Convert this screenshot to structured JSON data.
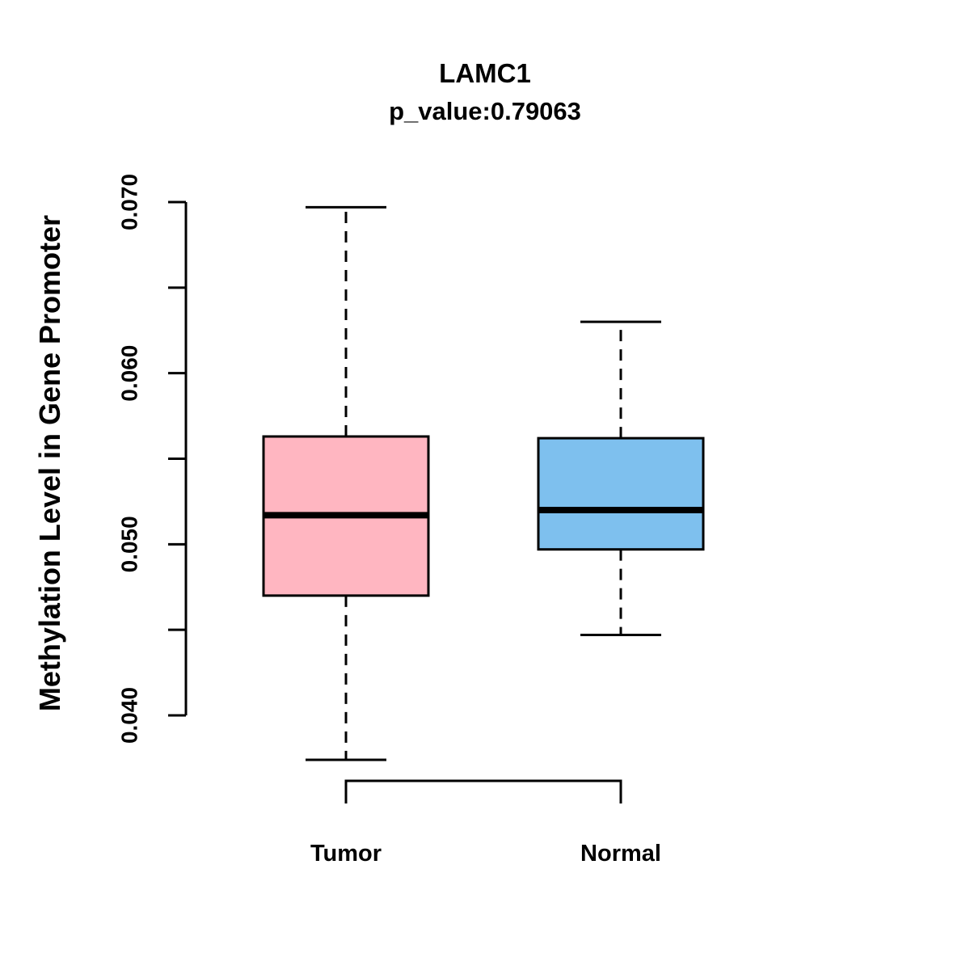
{
  "title": "LAMC1",
  "subtitle": "p_value:0.79063",
  "chart_data": {
    "type": "boxplot",
    "title": "LAMC1",
    "subtitle": "p_value:0.79063",
    "ylabel": "Methylation Level in Gene Promoter",
    "xlabel": "",
    "categories": [
      "Tumor",
      "Normal"
    ],
    "series": [
      {
        "name": "Tumor",
        "color": "#FFB6C1",
        "whisker_low": 0.0374,
        "q1": 0.047,
        "median": 0.0517,
        "q3": 0.0563,
        "whisker_high": 0.0697
      },
      {
        "name": "Normal",
        "color": "#7EC0EE",
        "whisker_low": 0.0447,
        "q1": 0.0497,
        "median": 0.052,
        "q3": 0.0562,
        "whisker_high": 0.063
      }
    ],
    "ylim": [
      0.04,
      0.07
    ],
    "yticks_labeled": [
      0.04,
      0.05,
      0.06,
      0.07
    ],
    "ytick_labels": [
      "0.040",
      "0.050",
      "0.060",
      "0.070"
    ],
    "ytick_minor_step": 0.005,
    "grid": "off",
    "legend": "none",
    "axis_color": "#000000",
    "median_color": "#000000",
    "whisker_style": "dashed"
  }
}
